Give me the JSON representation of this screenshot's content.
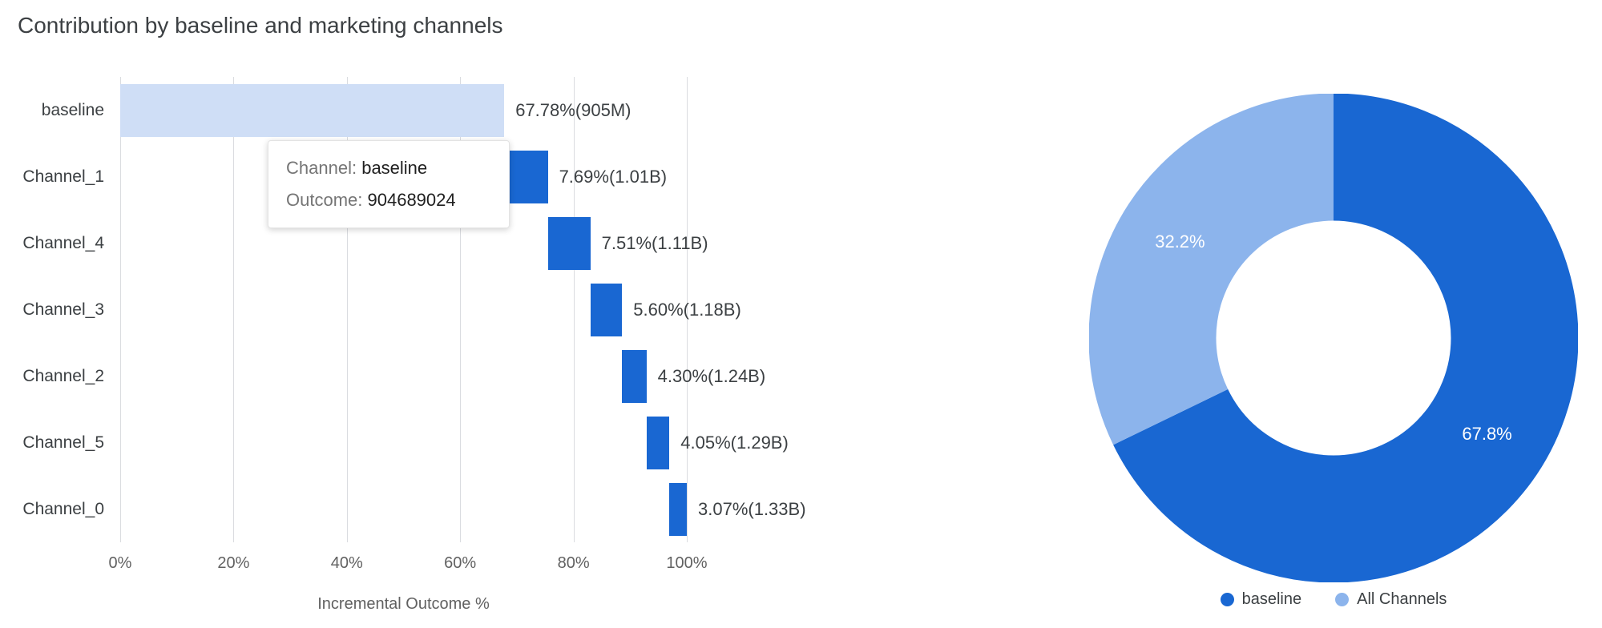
{
  "page": {
    "title": "Contribution by baseline and marketing channels",
    "background": "#ffffff"
  },
  "colors": {
    "bar_baseline": "#cfdef6",
    "bar_channel": "#1967d2",
    "donut_dark": "#1967d2",
    "donut_light": "#8cb4ec",
    "gridline": "#dadce0",
    "text_dark": "#3c4043",
    "text_muted": "#616161"
  },
  "tooltip": {
    "channel_label": "Channel:",
    "channel_value": "baseline",
    "outcome_label": "Outcome:",
    "outcome_value": "904689024"
  },
  "chart_data": [
    {
      "type": "bar",
      "variant": "horizontal-waterfall",
      "title": "Contribution by baseline and marketing channels",
      "xlabel": "Incremental Outcome %",
      "xlim": [
        0,
        100
      ],
      "x_ticks": [
        "0%",
        "20%",
        "40%",
        "60%",
        "80%",
        "100%"
      ],
      "grid": "vertical",
      "categories": [
        "baseline",
        "Channel_1",
        "Channel_4",
        "Channel_3",
        "Channel_2",
        "Channel_5",
        "Channel_0"
      ],
      "bars": [
        {
          "category": "baseline",
          "start": 0,
          "end": 67.78,
          "value_pct": 67.78,
          "label": "67.78%(905M)",
          "color_key": "baseline"
        },
        {
          "category": "Channel_1",
          "start": 67.78,
          "end": 75.47,
          "value_pct": 7.69,
          "label": "7.69%(1.01B)",
          "color_key": "channel"
        },
        {
          "category": "Channel_4",
          "start": 75.47,
          "end": 82.98,
          "value_pct": 7.51,
          "label": "7.51%(1.11B)",
          "color_key": "channel"
        },
        {
          "category": "Channel_3",
          "start": 82.98,
          "end": 88.58,
          "value_pct": 5.6,
          "label": "5.60%(1.18B)",
          "color_key": "channel"
        },
        {
          "category": "Channel_2",
          "start": 88.58,
          "end": 92.88,
          "value_pct": 4.3,
          "label": "4.30%(1.24B)",
          "color_key": "channel"
        },
        {
          "category": "Channel_5",
          "start": 92.88,
          "end": 96.93,
          "value_pct": 4.05,
          "label": "4.05%(1.29B)",
          "color_key": "channel"
        },
        {
          "category": "Channel_0",
          "start": 96.93,
          "end": 100.0,
          "value_pct": 3.07,
          "label": "3.07%(1.33B)",
          "color_key": "channel"
        }
      ]
    },
    {
      "type": "pie",
      "variant": "donut",
      "start_angle": "top",
      "direction": "clockwise",
      "slices": [
        {
          "name": "baseline",
          "value_pct": 67.8,
          "label": "67.8%",
          "color_key": "dark"
        },
        {
          "name": "All Channels",
          "value_pct": 32.2,
          "label": "32.2%",
          "color_key": "light"
        }
      ],
      "legend_position": "bottom",
      "legend": [
        {
          "label": "baseline",
          "color_key": "dark"
        },
        {
          "label": "All Channels",
          "color_key": "light"
        }
      ]
    }
  ]
}
